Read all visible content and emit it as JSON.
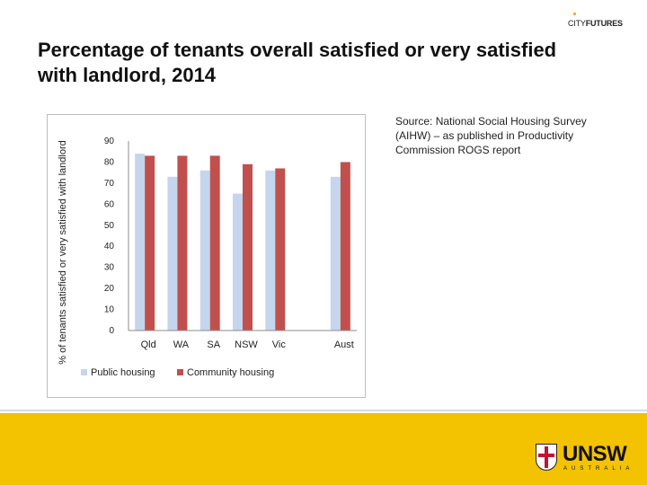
{
  "brand": {
    "logo_prefix": "CITY",
    "logo_main": "FUTURES",
    "university": "UNSW",
    "university_sub": "AUSTRALIA"
  },
  "slide": {
    "title": "Percentage of tenants overall satisfied or very satisfied with landlord, 2014",
    "source": "Source: National Social Housing Survey (AIHW) – as published in Productivity Commission ROGS report"
  },
  "chart_data": {
    "type": "bar",
    "title": "",
    "xlabel": "",
    "ylabel": "% of tenants satisfied or very satisfied with landlord",
    "categories": [
      "Qld",
      "WA",
      "SA",
      "NSW",
      "Vic",
      "",
      "Aust"
    ],
    "series": [
      {
        "name": "Public housing",
        "color": "#c6d5ee",
        "values": [
          84,
          73,
          76,
          65,
          76,
          null,
          73
        ]
      },
      {
        "name": "Community housing",
        "color": "#c0504d",
        "values": [
          83,
          83,
          83,
          79,
          77,
          null,
          80
        ]
      }
    ],
    "ylim": [
      0,
      90
    ],
    "yticks": [
      0,
      10,
      20,
      30,
      40,
      50,
      60,
      70,
      80,
      90
    ],
    "grid": false,
    "legend": "bottom"
  }
}
